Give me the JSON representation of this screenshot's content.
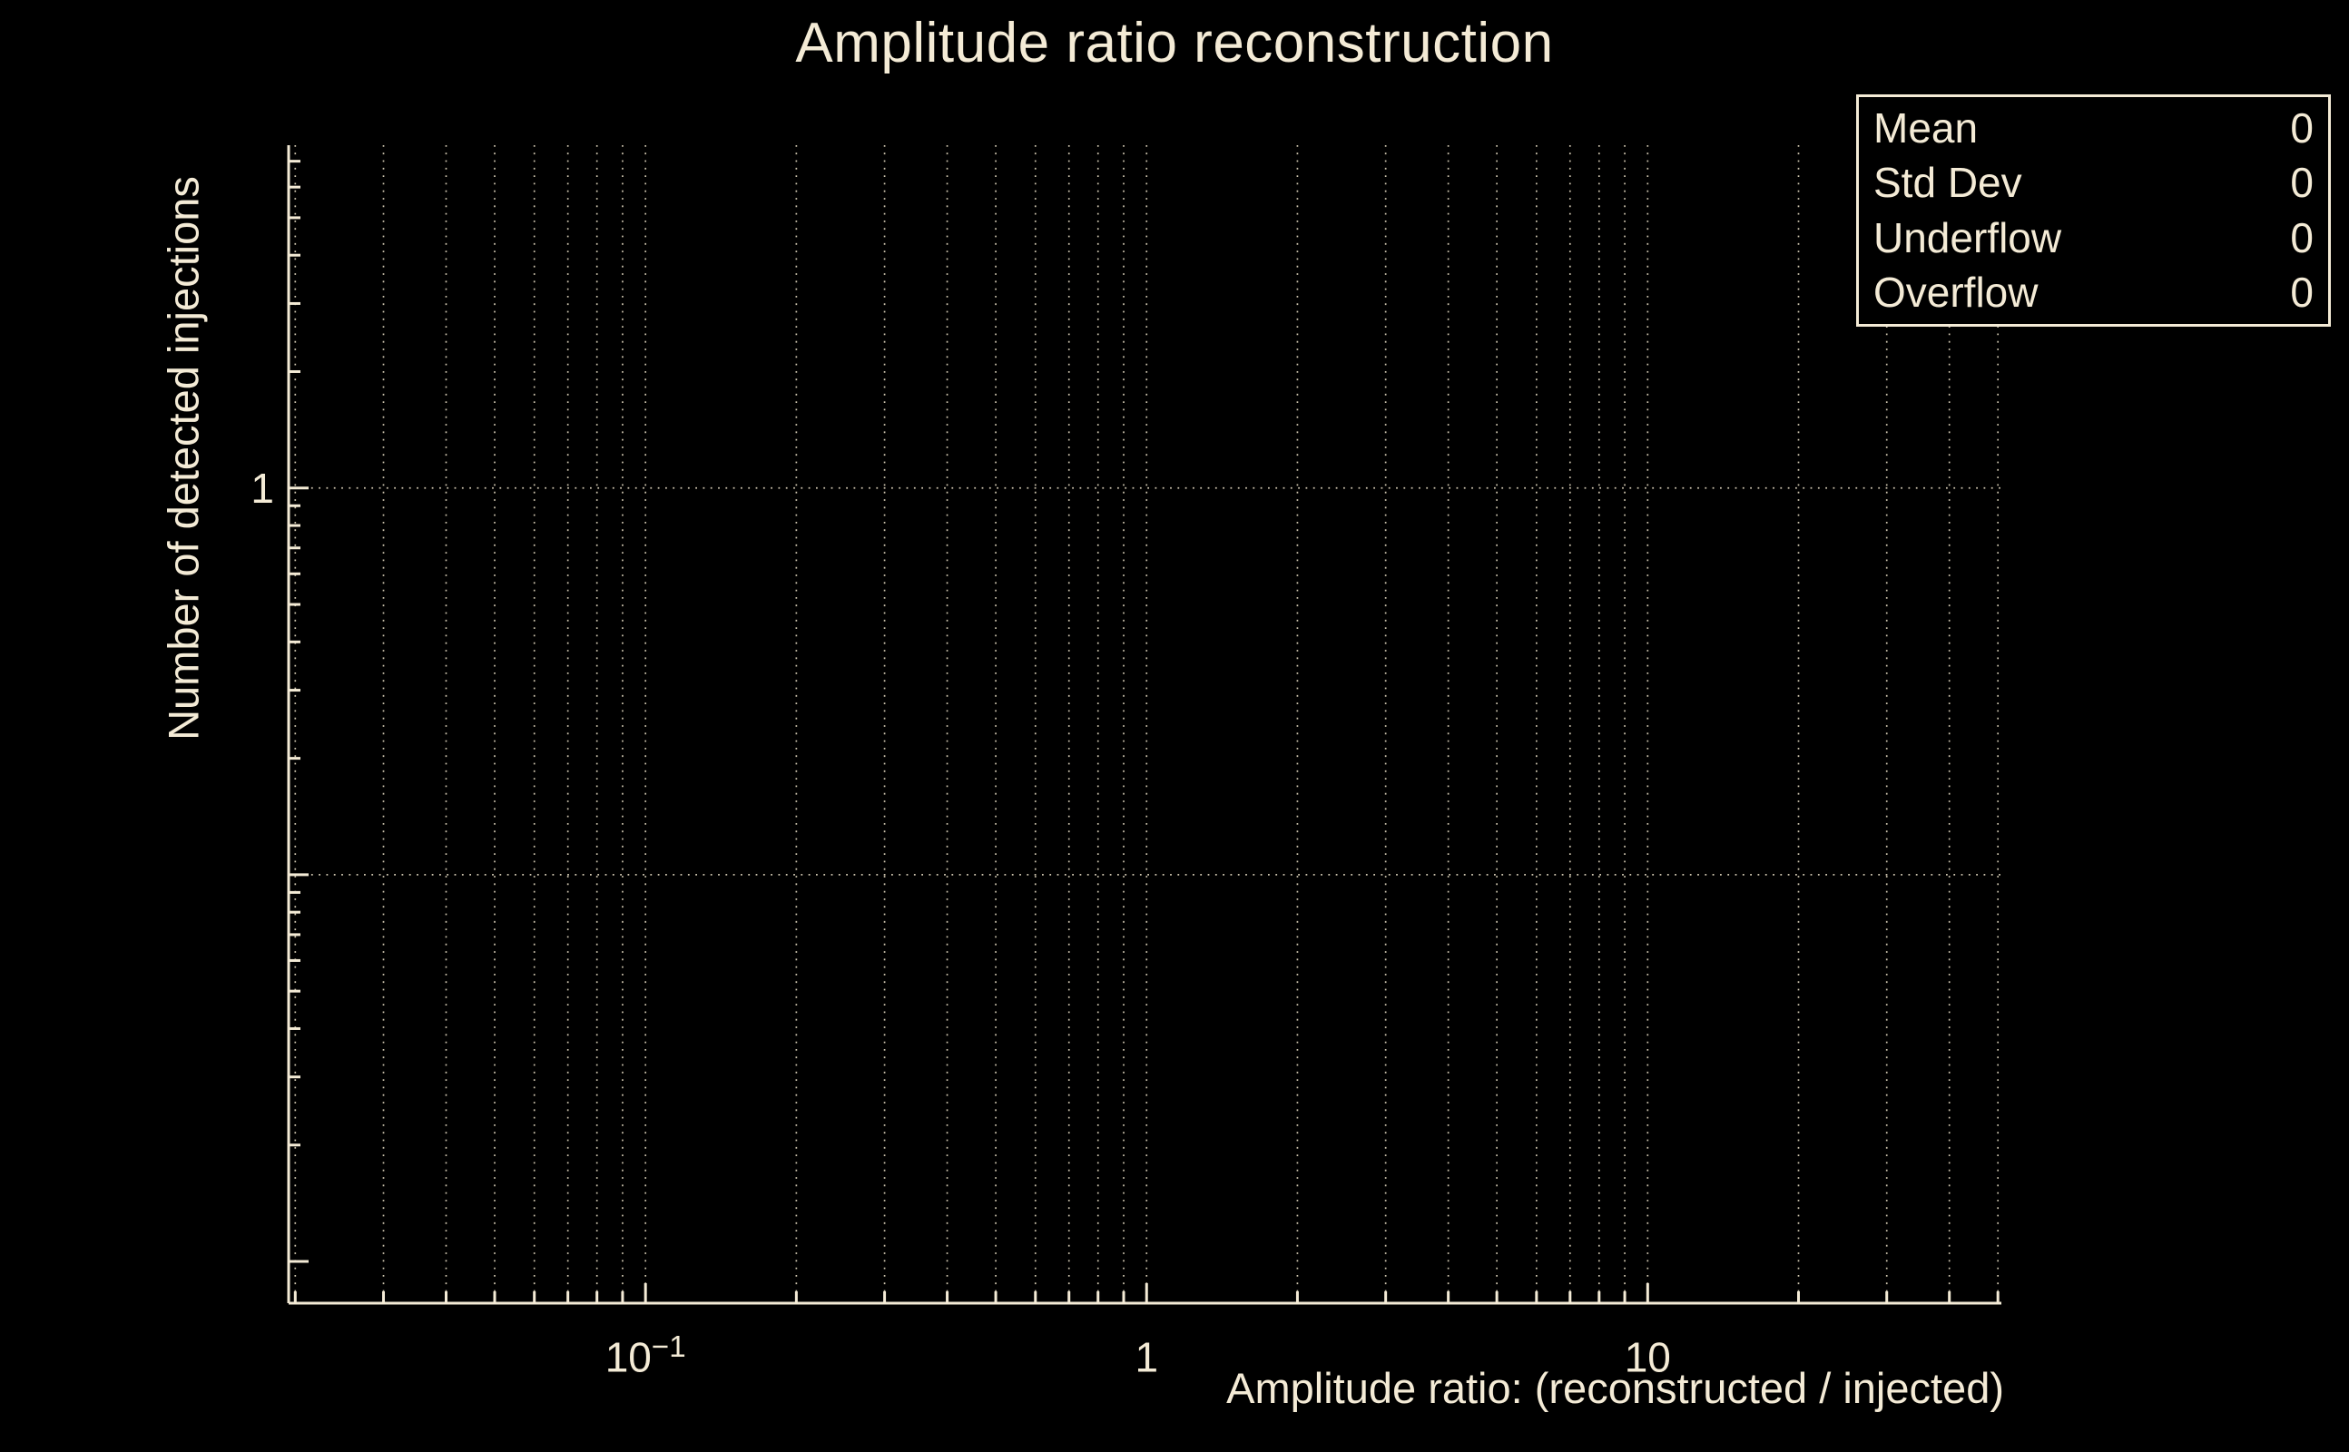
{
  "title": "Amplitude ratio reconstruction",
  "colors": {
    "background": "#000000",
    "foreground": "#f4ebd6",
    "grid": "#cdc4ae"
  },
  "stats_box": {
    "rows": [
      {
        "label": "Mean",
        "value": "0"
      },
      {
        "label": "Std Dev",
        "value": "0"
      },
      {
        "label": "Underflow",
        "value": "0"
      },
      {
        "label": "Overflow",
        "value": "0"
      }
    ]
  },
  "chart_data": {
    "type": "bar",
    "subtype": "histogram-empty",
    "title": "Amplitude ratio reconstruction",
    "xlabel": "Amplitude ratio: (reconstructed / injected)",
    "ylabel": "Number of detected injections",
    "xscale": "log",
    "yscale": "log",
    "xlim": [
      0.0194,
      50.8
    ],
    "ylim": [
      0.0078,
      7.7
    ],
    "grid": true,
    "entries": 0,
    "values": [],
    "x_ticks": [
      {
        "value": 0.1,
        "base": "10",
        "sup": "−1"
      },
      {
        "value": 1,
        "base": "1",
        "sup": ""
      },
      {
        "value": 10,
        "base": "10",
        "sup": ""
      }
    ],
    "y_ticks": [
      {
        "value": 1,
        "label": "1"
      }
    ],
    "y_gridlines": [
      1,
      0.1
    ],
    "stats": {
      "mean": 0,
      "std_dev": 0,
      "underflow": 0,
      "overflow": 0
    }
  }
}
